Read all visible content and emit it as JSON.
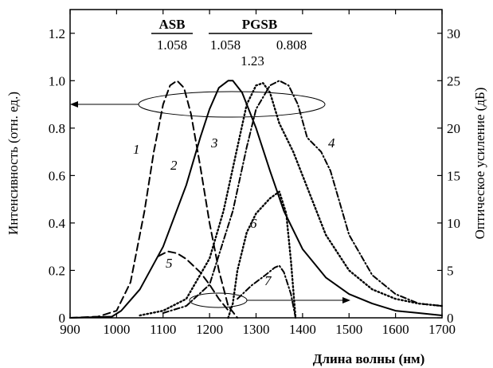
{
  "chart_data": {
    "type": "line",
    "xlabel": "Длина волны (нм)",
    "ylabel_left": "Интенсивность (отн. ед.)",
    "ylabel_right": "Оптическое усиление (дБ)",
    "xlim": [
      900,
      1700
    ],
    "ylim_left": [
      0,
      1.3
    ],
    "ylim_right": [
      0,
      32.5
    ],
    "x_ticks": [
      "900",
      "1000",
      "1100",
      "1200",
      "1300",
      "1400",
      "1500",
      "1600",
      "1700"
    ],
    "y_left_ticks": [
      "0",
      "0.2",
      "0.4",
      "0.6",
      "0.8",
      "1.0",
      "1.2"
    ],
    "y_right_ticks": [
      "0",
      "5",
      "10",
      "15",
      "20",
      "25",
      "30"
    ],
    "grid": false,
    "annotations": {
      "asb_header": "ASB",
      "pgsb_header": "PGSB",
      "asb_value": "1.058",
      "pgsb_value_1": "1.058",
      "pgsb_value_2": "1.23",
      "pgsb_value_3": "0.808"
    },
    "series": [
      {
        "name": "1",
        "axis": "left",
        "style": "dashed",
        "x": [
          900,
          960,
          1000,
          1030,
          1060,
          1080,
          1100,
          1115,
          1130,
          1145,
          1160,
          1180,
          1200,
          1220,
          1240,
          1260
        ],
        "y": [
          0,
          0.005,
          0.03,
          0.15,
          0.45,
          0.7,
          0.9,
          0.98,
          1.0,
          0.97,
          0.86,
          0.64,
          0.4,
          0.2,
          0.05,
          0
        ]
      },
      {
        "name": "2",
        "axis": "left",
        "style": "solid",
        "x": [
          900,
          990,
          1010,
          1050,
          1100,
          1150,
          1180,
          1200,
          1220,
          1240,
          1250,
          1270,
          1300,
          1330,
          1360,
          1400,
          1450,
          1500,
          1550,
          1600,
          1650,
          1700
        ],
        "y": [
          0,
          0.005,
          0.03,
          0.12,
          0.3,
          0.56,
          0.76,
          0.88,
          0.97,
          1.0,
          1.0,
          0.95,
          0.8,
          0.62,
          0.45,
          0.29,
          0.17,
          0.1,
          0.06,
          0.03,
          0.02,
          0.01
        ]
      },
      {
        "name": "3",
        "axis": "left",
        "style": "dotted",
        "x": [
          1050,
          1100,
          1150,
          1200,
          1230,
          1260,
          1280,
          1300,
          1315,
          1330,
          1350,
          1380,
          1400,
          1450,
          1500,
          1550,
          1600,
          1650,
          1700
        ],
        "y": [
          0.01,
          0.03,
          0.08,
          0.25,
          0.45,
          0.72,
          0.9,
          0.98,
          0.99,
          0.95,
          0.82,
          0.7,
          0.6,
          0.35,
          0.2,
          0.12,
          0.08,
          0.06,
          0.05
        ]
      },
      {
        "name": "4",
        "axis": "left",
        "style": "dash-dot",
        "x": [
          1100,
          1150,
          1200,
          1250,
          1280,
          1300,
          1330,
          1350,
          1370,
          1390,
          1410,
          1440,
          1460,
          1500,
          1550,
          1600,
          1650,
          1700
        ],
        "y": [
          0.02,
          0.05,
          0.14,
          0.45,
          0.72,
          0.88,
          0.98,
          1.0,
          0.98,
          0.9,
          0.76,
          0.7,
          0.62,
          0.35,
          0.18,
          0.1,
          0.06,
          0.05
        ]
      },
      {
        "name": "5",
        "axis": "right",
        "style": "dashed",
        "x": [
          1090,
          1110,
          1130,
          1150,
          1180,
          1200,
          1220,
          1240
        ],
        "y": [
          6.5,
          7,
          6.8,
          6.2,
          4.8,
          3.5,
          2,
          0.8
        ]
      },
      {
        "name": "6",
        "axis": "right",
        "style": "dotted",
        "x": [
          1240,
          1250,
          1260,
          1280,
          1300,
          1330,
          1350,
          1365,
          1375,
          1385
        ],
        "y": [
          0,
          1.5,
          5,
          9,
          11,
          12.6,
          13.3,
          11,
          6,
          0
        ]
      },
      {
        "name": "7",
        "axis": "right",
        "style": "dash-dot",
        "x": [
          1260,
          1290,
          1320,
          1340,
          1350,
          1360,
          1375,
          1385
        ],
        "y": [
          2,
          3.4,
          4.5,
          5.3,
          5.5,
          4.8,
          2.5,
          0
        ]
      }
    ]
  }
}
